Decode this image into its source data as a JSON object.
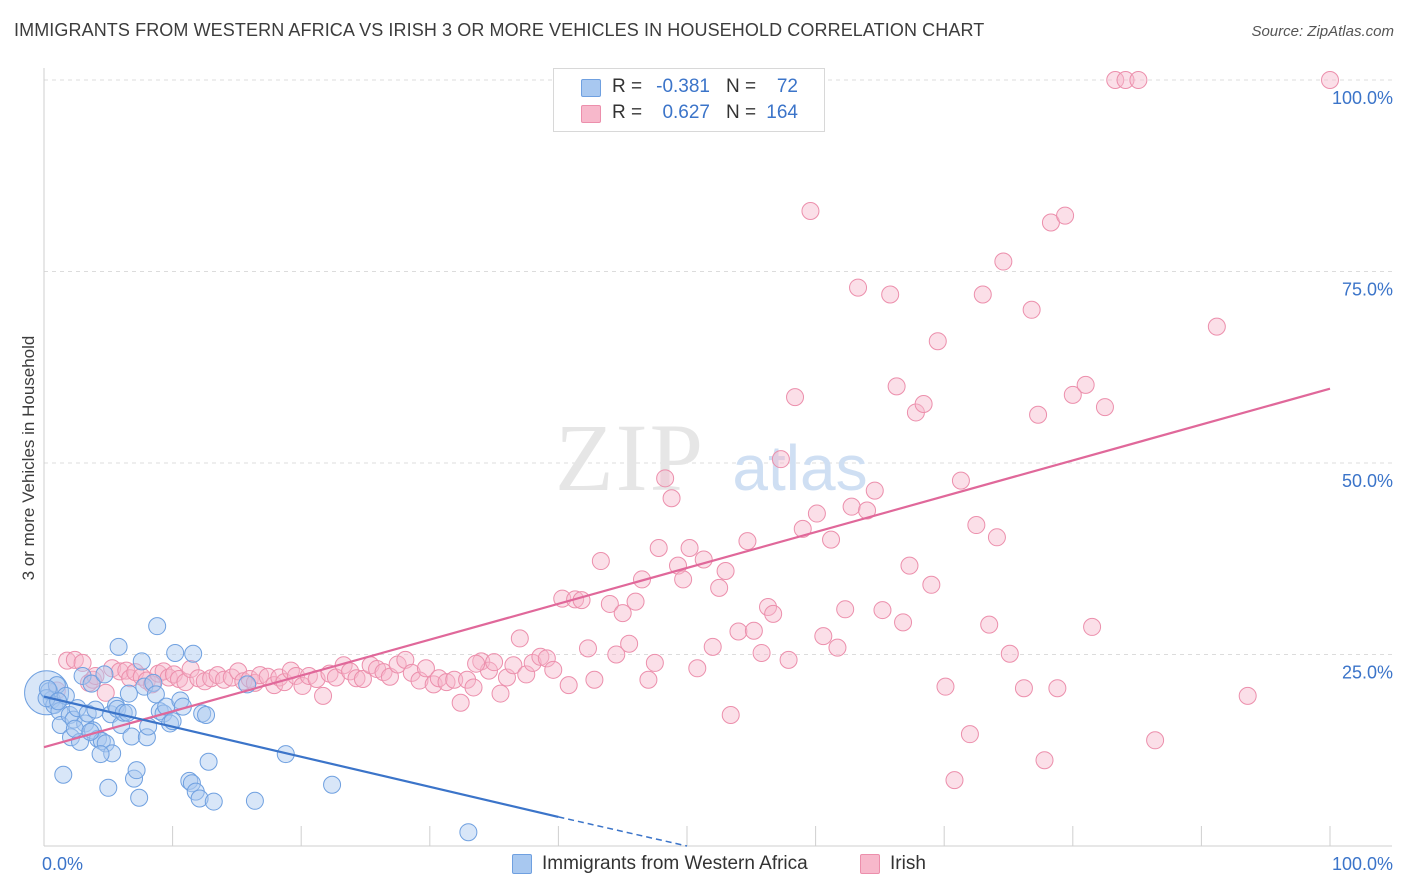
{
  "title": "IMMIGRANTS FROM WESTERN AFRICA VS IRISH 3 OR MORE VEHICLES IN HOUSEHOLD CORRELATION CHART",
  "source": "Source: ZipAtlas.com",
  "watermark": {
    "zip": "ZIP",
    "atlas": "atlas"
  },
  "legend": {
    "rows": [
      {
        "r_label": "R =",
        "r_value": "-0.381",
        "n_label": "N =",
        "n_value": "72",
        "color": "#a8c8f0"
      },
      {
        "r_label": "R =",
        "r_value": "0.627",
        "n_label": "N =",
        "n_value": "164",
        "color": "#f7b8cb"
      }
    ]
  },
  "bottom_legend": [
    {
      "label": "Immigrants from Western Africa",
      "color": "#a8c8f0"
    },
    {
      "label": "Irish",
      "color": "#f7b8cb"
    }
  ],
  "chart_data": {
    "type": "scatter",
    "xlabel": "",
    "ylabel": "3 or more Vehicles in Household",
    "xlim": [
      0,
      100
    ],
    "ylim": [
      0,
      100
    ],
    "x_tick_labels": [
      "0.0%",
      "100.0%"
    ],
    "y_tick_labels": [
      "25.0%",
      "50.0%",
      "75.0%",
      "100.0%"
    ],
    "y_ticks": [
      25,
      50,
      75,
      100
    ],
    "grid": true,
    "series": [
      {
        "name": "Immigrants from Western Africa",
        "color": "#a8c8f0",
        "stroke": "#6fa0e0",
        "trend": {
          "x": [
            0,
            40
          ],
          "y": [
            19.5,
            3.8
          ],
          "dashed_to": [
            50,
            0
          ],
          "color": "#3b74c9"
        },
        "points": [
          [
            0.4,
            20.2
          ],
          [
            0.6,
            19.1
          ],
          [
            0.8,
            18.4
          ],
          [
            1.0,
            21.0
          ],
          [
            1.2,
            17.6
          ],
          [
            1.3,
            15.8
          ],
          [
            1.5,
            9.3
          ],
          [
            1.7,
            19.6
          ],
          [
            2.0,
            17.1
          ],
          [
            2.1,
            14.2
          ],
          [
            2.3,
            16.5
          ],
          [
            2.6,
            18.0
          ],
          [
            2.8,
            13.6
          ],
          [
            3.0,
            22.2
          ],
          [
            3.2,
            16.0
          ],
          [
            3.4,
            17.3
          ],
          [
            3.7,
            21.2
          ],
          [
            3.8,
            15.1
          ],
          [
            4.0,
            17.8
          ],
          [
            4.2,
            14.0
          ],
          [
            4.5,
            13.7
          ],
          [
            4.7,
            22.4
          ],
          [
            4.8,
            13.4
          ],
          [
            5.0,
            7.6
          ],
          [
            5.2,
            17.2
          ],
          [
            5.3,
            12.1
          ],
          [
            5.6,
            18.3
          ],
          [
            5.7,
            17.9
          ],
          [
            5.8,
            26.0
          ],
          [
            6.0,
            15.8
          ],
          [
            6.2,
            17.4
          ],
          [
            6.5,
            17.4
          ],
          [
            6.6,
            19.9
          ],
          [
            6.8,
            14.3
          ],
          [
            7.0,
            8.8
          ],
          [
            7.2,
            9.9
          ],
          [
            7.4,
            6.3
          ],
          [
            7.6,
            24.1
          ],
          [
            7.8,
            20.8
          ],
          [
            8.0,
            14.2
          ],
          [
            8.1,
            15.6
          ],
          [
            8.5,
            21.3
          ],
          [
            8.7,
            19.8
          ],
          [
            8.8,
            28.7
          ],
          [
            9.0,
            17.6
          ],
          [
            9.3,
            17.3
          ],
          [
            9.5,
            18.2
          ],
          [
            9.8,
            16.0
          ],
          [
            10.0,
            16.3
          ],
          [
            10.2,
            25.2
          ],
          [
            10.6,
            19.0
          ],
          [
            10.8,
            18.2
          ],
          [
            11.3,
            8.5
          ],
          [
            11.5,
            8.2
          ],
          [
            11.6,
            25.1
          ],
          [
            11.8,
            7.1
          ],
          [
            12.1,
            6.2
          ],
          [
            12.3,
            17.3
          ],
          [
            12.6,
            17.1
          ],
          [
            12.8,
            11.0
          ],
          [
            13.2,
            5.8
          ],
          [
            15.8,
            21.1
          ],
          [
            16.4,
            5.9
          ],
          [
            18.8,
            12.0
          ],
          [
            22.4,
            8.0
          ],
          [
            33.0,
            1.8
          ],
          [
            0.2,
            19.3
          ],
          [
            0.3,
            20.5
          ],
          [
            1.1,
            18.9
          ],
          [
            2.4,
            15.3
          ],
          [
            4.4,
            12.0
          ],
          [
            3.6,
            14.9
          ]
        ],
        "big_point": [
          0.2,
          20.0
        ]
      },
      {
        "name": "Irish",
        "color": "#f7b8cb",
        "stroke": "#ec8fac",
        "trend": {
          "x": [
            0,
            100
          ],
          "y": [
            12.9,
            59.7
          ],
          "color": "#e0689a"
        },
        "points": [
          [
            1.0,
            20.3
          ],
          [
            1.8,
            24.2
          ],
          [
            2.4,
            24.3
          ],
          [
            3.0,
            23.9
          ],
          [
            3.5,
            21.3
          ],
          [
            3.8,
            21.7
          ],
          [
            4.0,
            22.2
          ],
          [
            4.8,
            20.0
          ],
          [
            5.3,
            23.2
          ],
          [
            5.9,
            22.8
          ],
          [
            6.4,
            22.9
          ],
          [
            6.7,
            21.9
          ],
          [
            7.1,
            22.7
          ],
          [
            7.6,
            22.1
          ],
          [
            8.0,
            21.6
          ],
          [
            8.4,
            21.1
          ],
          [
            8.9,
            22.5
          ],
          [
            9.3,
            22.8
          ],
          [
            9.7,
            22.0
          ],
          [
            10.1,
            22.4
          ],
          [
            10.5,
            21.8
          ],
          [
            11.0,
            21.4
          ],
          [
            11.4,
            23.1
          ],
          [
            12.0,
            21.9
          ],
          [
            12.5,
            21.5
          ],
          [
            13.0,
            21.9
          ],
          [
            13.5,
            22.3
          ],
          [
            14.0,
            21.7
          ],
          [
            14.6,
            22.0
          ],
          [
            15.1,
            22.8
          ],
          [
            15.5,
            21.5
          ],
          [
            16.0,
            21.8
          ],
          [
            16.4,
            21.3
          ],
          [
            16.8,
            22.3
          ],
          [
            17.4,
            22.1
          ],
          [
            17.9,
            21.0
          ],
          [
            18.3,
            22.0
          ],
          [
            18.7,
            21.4
          ],
          [
            19.2,
            22.9
          ],
          [
            19.6,
            22.2
          ],
          [
            20.1,
            20.9
          ],
          [
            20.6,
            22.2
          ],
          [
            21.2,
            21.8
          ],
          [
            21.7,
            19.6
          ],
          [
            22.2,
            22.5
          ],
          [
            22.7,
            22.0
          ],
          [
            23.3,
            23.6
          ],
          [
            23.8,
            22.8
          ],
          [
            24.3,
            21.9
          ],
          [
            24.8,
            21.8
          ],
          [
            25.4,
            23.6
          ],
          [
            25.9,
            23.1
          ],
          [
            26.4,
            22.7
          ],
          [
            26.9,
            22.1
          ],
          [
            27.5,
            23.7
          ],
          [
            28.1,
            24.3
          ],
          [
            28.6,
            22.6
          ],
          [
            29.2,
            21.6
          ],
          [
            29.7,
            23.2
          ],
          [
            30.3,
            21.1
          ],
          [
            30.7,
            21.9
          ],
          [
            31.3,
            21.4
          ],
          [
            31.9,
            21.7
          ],
          [
            32.4,
            18.7
          ],
          [
            32.9,
            21.7
          ],
          [
            33.4,
            20.7
          ],
          [
            34.0,
            24.1
          ],
          [
            34.6,
            22.9
          ],
          [
            35.0,
            24.0
          ],
          [
            35.5,
            19.9
          ],
          [
            36.0,
            22.0
          ],
          [
            36.5,
            23.6
          ],
          [
            37.0,
            27.1
          ],
          [
            37.5,
            22.4
          ],
          [
            38.0,
            23.9
          ],
          [
            38.6,
            24.7
          ],
          [
            39.1,
            24.5
          ],
          [
            39.6,
            23.0
          ],
          [
            40.3,
            32.3
          ],
          [
            40.8,
            21.0
          ],
          [
            41.3,
            32.2
          ],
          [
            41.8,
            32.1
          ],
          [
            42.3,
            25.8
          ],
          [
            42.8,
            21.7
          ],
          [
            43.3,
            37.2
          ],
          [
            44.0,
            31.6
          ],
          [
            44.5,
            25.0
          ],
          [
            45.0,
            30.4
          ],
          [
            45.5,
            26.4
          ],
          [
            46.0,
            31.9
          ],
          [
            46.5,
            34.8
          ],
          [
            47.0,
            21.7
          ],
          [
            47.5,
            23.9
          ],
          [
            47.8,
            38.9
          ],
          [
            48.3,
            48.0
          ],
          [
            48.8,
            45.4
          ],
          [
            49.3,
            36.6
          ],
          [
            49.7,
            34.8
          ],
          [
            50.2,
            38.9
          ],
          [
            50.8,
            23.2
          ],
          [
            51.3,
            37.4
          ],
          [
            52.0,
            26.0
          ],
          [
            52.5,
            33.7
          ],
          [
            53.0,
            35.9
          ],
          [
            53.4,
            17.1
          ],
          [
            54.0,
            28.0
          ],
          [
            54.7,
            39.8
          ],
          [
            55.2,
            28.1
          ],
          [
            55.8,
            25.2
          ],
          [
            56.3,
            31.2
          ],
          [
            56.7,
            30.3
          ],
          [
            57.3,
            50.5
          ],
          [
            57.9,
            24.3
          ],
          [
            58.4,
            58.6
          ],
          [
            59.0,
            41.4
          ],
          [
            59.6,
            82.9
          ],
          [
            60.1,
            43.4
          ],
          [
            60.6,
            27.4
          ],
          [
            61.2,
            40.0
          ],
          [
            61.7,
            25.9
          ],
          [
            62.3,
            30.9
          ],
          [
            62.8,
            44.3
          ],
          [
            63.3,
            72.9
          ],
          [
            64.0,
            43.8
          ],
          [
            64.6,
            46.4
          ],
          [
            65.2,
            30.8
          ],
          [
            65.8,
            72.0
          ],
          [
            66.3,
            60.0
          ],
          [
            66.8,
            29.2
          ],
          [
            67.3,
            36.6
          ],
          [
            67.8,
            56.6
          ],
          [
            68.4,
            57.7
          ],
          [
            69.0,
            34.1
          ],
          [
            69.5,
            65.9
          ],
          [
            70.1,
            20.8
          ],
          [
            70.8,
            8.6
          ],
          [
            71.3,
            47.7
          ],
          [
            72.0,
            14.6
          ],
          [
            72.5,
            41.9
          ],
          [
            73.0,
            72.0
          ],
          [
            73.5,
            28.9
          ],
          [
            74.1,
            40.3
          ],
          [
            74.6,
            76.3
          ],
          [
            75.1,
            25.1
          ],
          [
            76.2,
            20.6
          ],
          [
            76.8,
            70.0
          ],
          [
            77.3,
            56.3
          ],
          [
            77.8,
            11.2
          ],
          [
            78.3,
            81.4
          ],
          [
            78.8,
            20.6
          ],
          [
            79.4,
            82.3
          ],
          [
            80.0,
            58.9
          ],
          [
            81.0,
            60.2
          ],
          [
            81.5,
            28.6
          ],
          [
            82.5,
            57.3
          ],
          [
            83.3,
            100.0
          ],
          [
            84.1,
            100.0
          ],
          [
            85.1,
            100.0
          ],
          [
            86.4,
            13.8
          ],
          [
            91.2,
            67.8
          ],
          [
            93.6,
            19.6
          ],
          [
            100.0,
            100.0
          ],
          [
            33.6,
            23.8
          ]
        ]
      }
    ]
  }
}
